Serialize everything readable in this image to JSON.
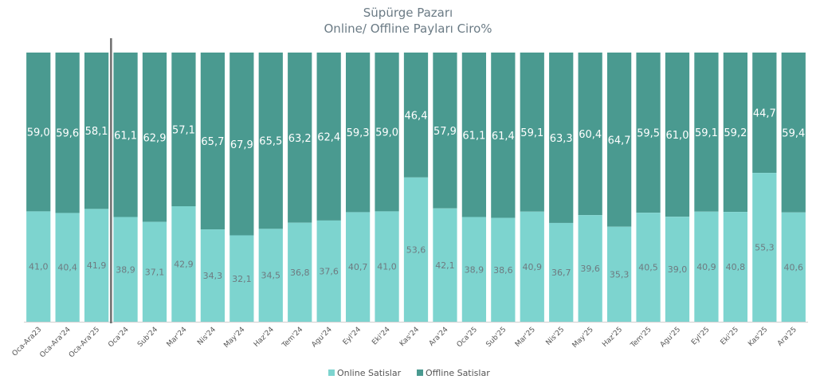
{
  "chart_data": {
    "type": "bar",
    "stacked": "100%",
    "title": "Süpürge Pazarı",
    "subtitle": "Online/ Offline Payları Ciro%",
    "categories": [
      "Oca-Ara23",
      "Oca-Ara'24",
      "Oca-Ara'25",
      "Oca'24",
      "Sub'24",
      "Mar'24",
      "Nis'24",
      "May'24",
      "Haz'24",
      "Tem'24",
      "Agu'24",
      "Eyl'24",
      "Eki'24",
      "Kas'24",
      "Ara'24",
      "Oca'25",
      "Sub'25",
      "Mar'25",
      "Nis'25",
      "May'25",
      "Haz'25",
      "Tem'25",
      "Agu'25",
      "Eyl'25",
      "Eki'25",
      "Kas'25",
      "Ara'25"
    ],
    "series": [
      {
        "name": "Online Satislar",
        "color": "#7dd4cf",
        "values": [
          41.0,
          40.4,
          41.9,
          38.9,
          37.1,
          42.9,
          34.3,
          32.1,
          34.5,
          36.8,
          37.6,
          40.7,
          41.0,
          53.6,
          42.1,
          38.9,
          38.6,
          40.9,
          36.7,
          39.6,
          35.3,
          40.5,
          39.0,
          40.9,
          40.8,
          55.3,
          40.6
        ],
        "labels": [
          "41,0",
          "40,4",
          "41,9",
          "38,9",
          "37,1",
          "42,9",
          "34,3",
          "32,1",
          "34,5",
          "36,8",
          "37,6",
          "40,7",
          "41,0",
          "53,6",
          "42,1",
          "38,9",
          "38,6",
          "40,9",
          "36,7",
          "39,6",
          "35,3",
          "40,5",
          "39,0",
          "40,9",
          "40,8",
          "55,3",
          "40,6"
        ]
      },
      {
        "name": "Offline Satislar",
        "color": "#4a9a90",
        "values": [
          59.0,
          59.6,
          58.1,
          61.1,
          62.9,
          57.1,
          65.7,
          67.9,
          65.5,
          63.2,
          62.4,
          59.3,
          59.0,
          46.4,
          57.9,
          61.1,
          61.4,
          59.1,
          63.3,
          60.4,
          64.7,
          59.5,
          61.0,
          59.1,
          59.2,
          44.7,
          59.4
        ],
        "labels": [
          "59,0",
          "59,6",
          "58,1",
          "61,1",
          "62,9",
          "57,1",
          "65,7",
          "67,9",
          "65,5",
          "63,2",
          "62,4",
          "59,3",
          "59,0",
          "46,4",
          "57,9",
          "61,1",
          "61,4",
          "59,1",
          "63,3",
          "60,4",
          "64,7",
          "59,5",
          "61,0",
          "59,1",
          "59,2",
          "44,7",
          "59,4"
        ]
      }
    ],
    "ylim": [
      0,
      100
    ],
    "grid": false,
    "legend_position": "bottom-center",
    "separator_after_index": 2
  }
}
